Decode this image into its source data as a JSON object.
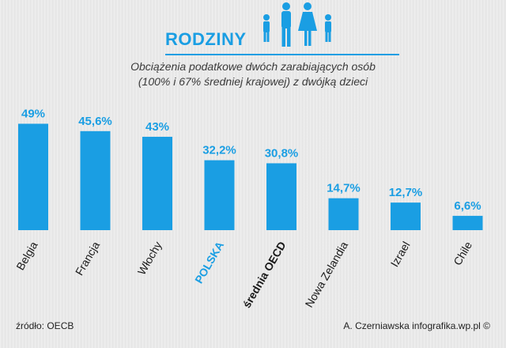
{
  "header": {
    "title": "RODZINY",
    "subtitle_line1": "Obciążenia podatkowe dwóch zarabiających osób",
    "subtitle_line2": "(100% i 67% średniej krajowej) z dwójką dzieci",
    "icon": "family-icon"
  },
  "footer": {
    "source": "źródło: OECB",
    "credit": "A. Czerniawska infografika.wp.pl ©"
  },
  "colors": {
    "bar": "#1a9ee3",
    "value_label": "#1a9ee3",
    "category_label": "#1a1a1a",
    "highlight_label": "#1a9ee3"
  },
  "chart_data": {
    "type": "bar",
    "categories": [
      "Belgia",
      "Francja",
      "Włochy",
      "POLSKA",
      "średnia OECD",
      "Nowa Zelandia",
      "Izrael",
      "Chile"
    ],
    "values": [
      49,
      45.6,
      43,
      32.2,
      30.8,
      14.7,
      12.7,
      6.6
    ],
    "value_labels": [
      "49%",
      "45,6%",
      "43%",
      "32,2%",
      "30,8%",
      "14,7%",
      "12,7%",
      "6,6%"
    ],
    "highlight": [
      "POLSKA"
    ],
    "bold_categories": [
      "POLSKA",
      "średnia OECD"
    ],
    "ylim": [
      0,
      55
    ],
    "grid": false,
    "axis_visible": false
  }
}
